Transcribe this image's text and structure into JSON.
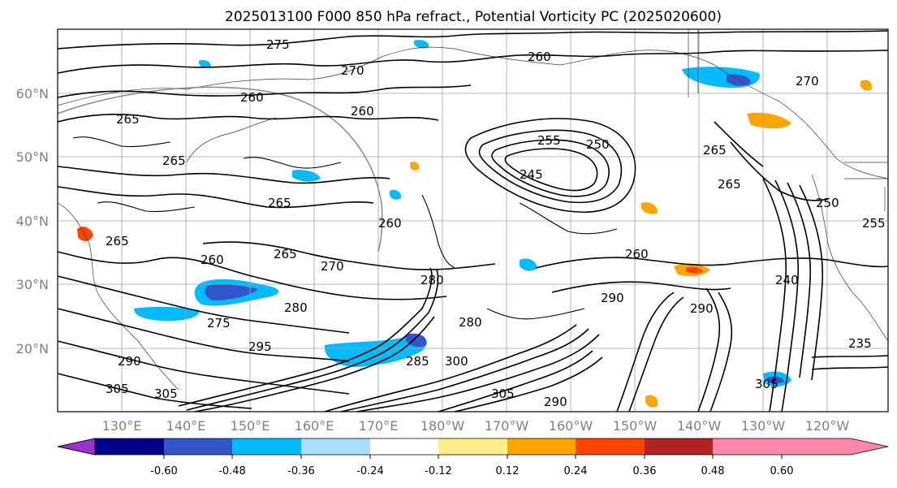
{
  "title": "2025013100 F000 850 hPa refract., Potential Vorticity PC (2025020600)",
  "lat_labels": [
    "60°N",
    "50°N",
    "40°N",
    "30°N",
    "20°N"
  ],
  "lon_labels": [
    "130°E",
    "140°E",
    "150°E",
    "160°E",
    "170°E",
    "180°W",
    "170°W",
    "160°W",
    "150°W",
    "140°W",
    "130°W",
    "120°W"
  ],
  "colorbar": {
    "colors": [
      "#9933cc",
      "#00008b",
      "#3355cc",
      "#00bbff",
      "#aaddff",
      "#ffffff",
      "#ffee88",
      "#ffa500",
      "#ff4400",
      "#b22222",
      "#ff88aa"
    ],
    "labels": [
      "-0.60",
      "-0.48",
      "-0.36",
      "-0.24",
      "-0.12",
      "0.12",
      "0.24",
      "0.36",
      "0.48",
      "0.60"
    ]
  },
  "contour_labels": [
    "275",
    "270",
    "260",
    "265",
    "260",
    "265",
    "260",
    "255",
    "250",
    "245",
    "265",
    "265",
    "265",
    "260",
    "270",
    "265",
    "270",
    "260",
    "280",
    "275",
    "280",
    "290",
    "280",
    "285",
    "300",
    "305",
    "290",
    "295",
    "290",
    "305",
    "305",
    "235",
    "240",
    "250",
    "255",
    "305",
    "260",
    "265",
    "290"
  ]
}
